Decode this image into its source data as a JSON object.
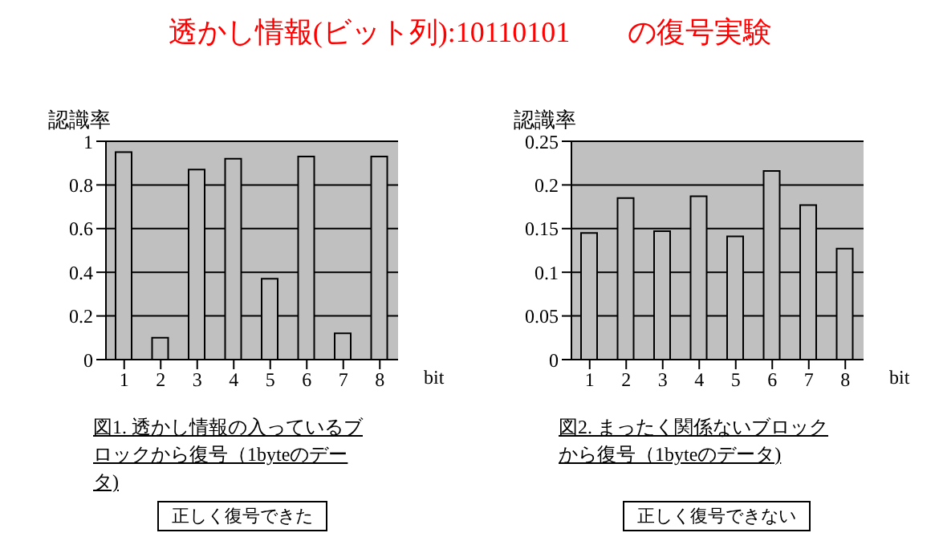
{
  "chart_data": [
    {
      "type": "bar",
      "title": "透かし情報(ビット列):10110101　　の復号実験",
      "ylabel": "認識率",
      "xlabel": "bit",
      "categories": [
        "1",
        "2",
        "3",
        "4",
        "5",
        "6",
        "7",
        "8"
      ],
      "values": [
        0.95,
        0.1,
        0.87,
        0.92,
        0.37,
        0.93,
        0.12,
        0.93
      ],
      "color": "#c0c0c0",
      "ylim": [
        0,
        1
      ],
      "yticks": [
        0,
        0.2,
        0.4,
        0.6,
        0.8,
        1
      ],
      "grid": "y",
      "annotations": [
        "図1. 透かし情報の入っているブロックから復号（1byteのデータ)",
        "正しく復号できた"
      ]
    },
    {
      "type": "bar",
      "ylabel": "認識率",
      "xlabel": "bit",
      "categories": [
        "1",
        "2",
        "3",
        "4",
        "5",
        "6",
        "7",
        "8"
      ],
      "values": [
        0.145,
        0.185,
        0.147,
        0.187,
        0.141,
        0.216,
        0.177,
        0.127
      ],
      "color": "#c0c0c0",
      "ylim": [
        0,
        0.25
      ],
      "yticks": [
        0,
        0.05,
        0.1,
        0.15,
        0.2,
        0.25
      ],
      "grid": "y",
      "annotations": [
        "図2. まったく関係ないブロックから復号（1byteのデータ)",
        "正しく復号できない"
      ]
    }
  ]
}
